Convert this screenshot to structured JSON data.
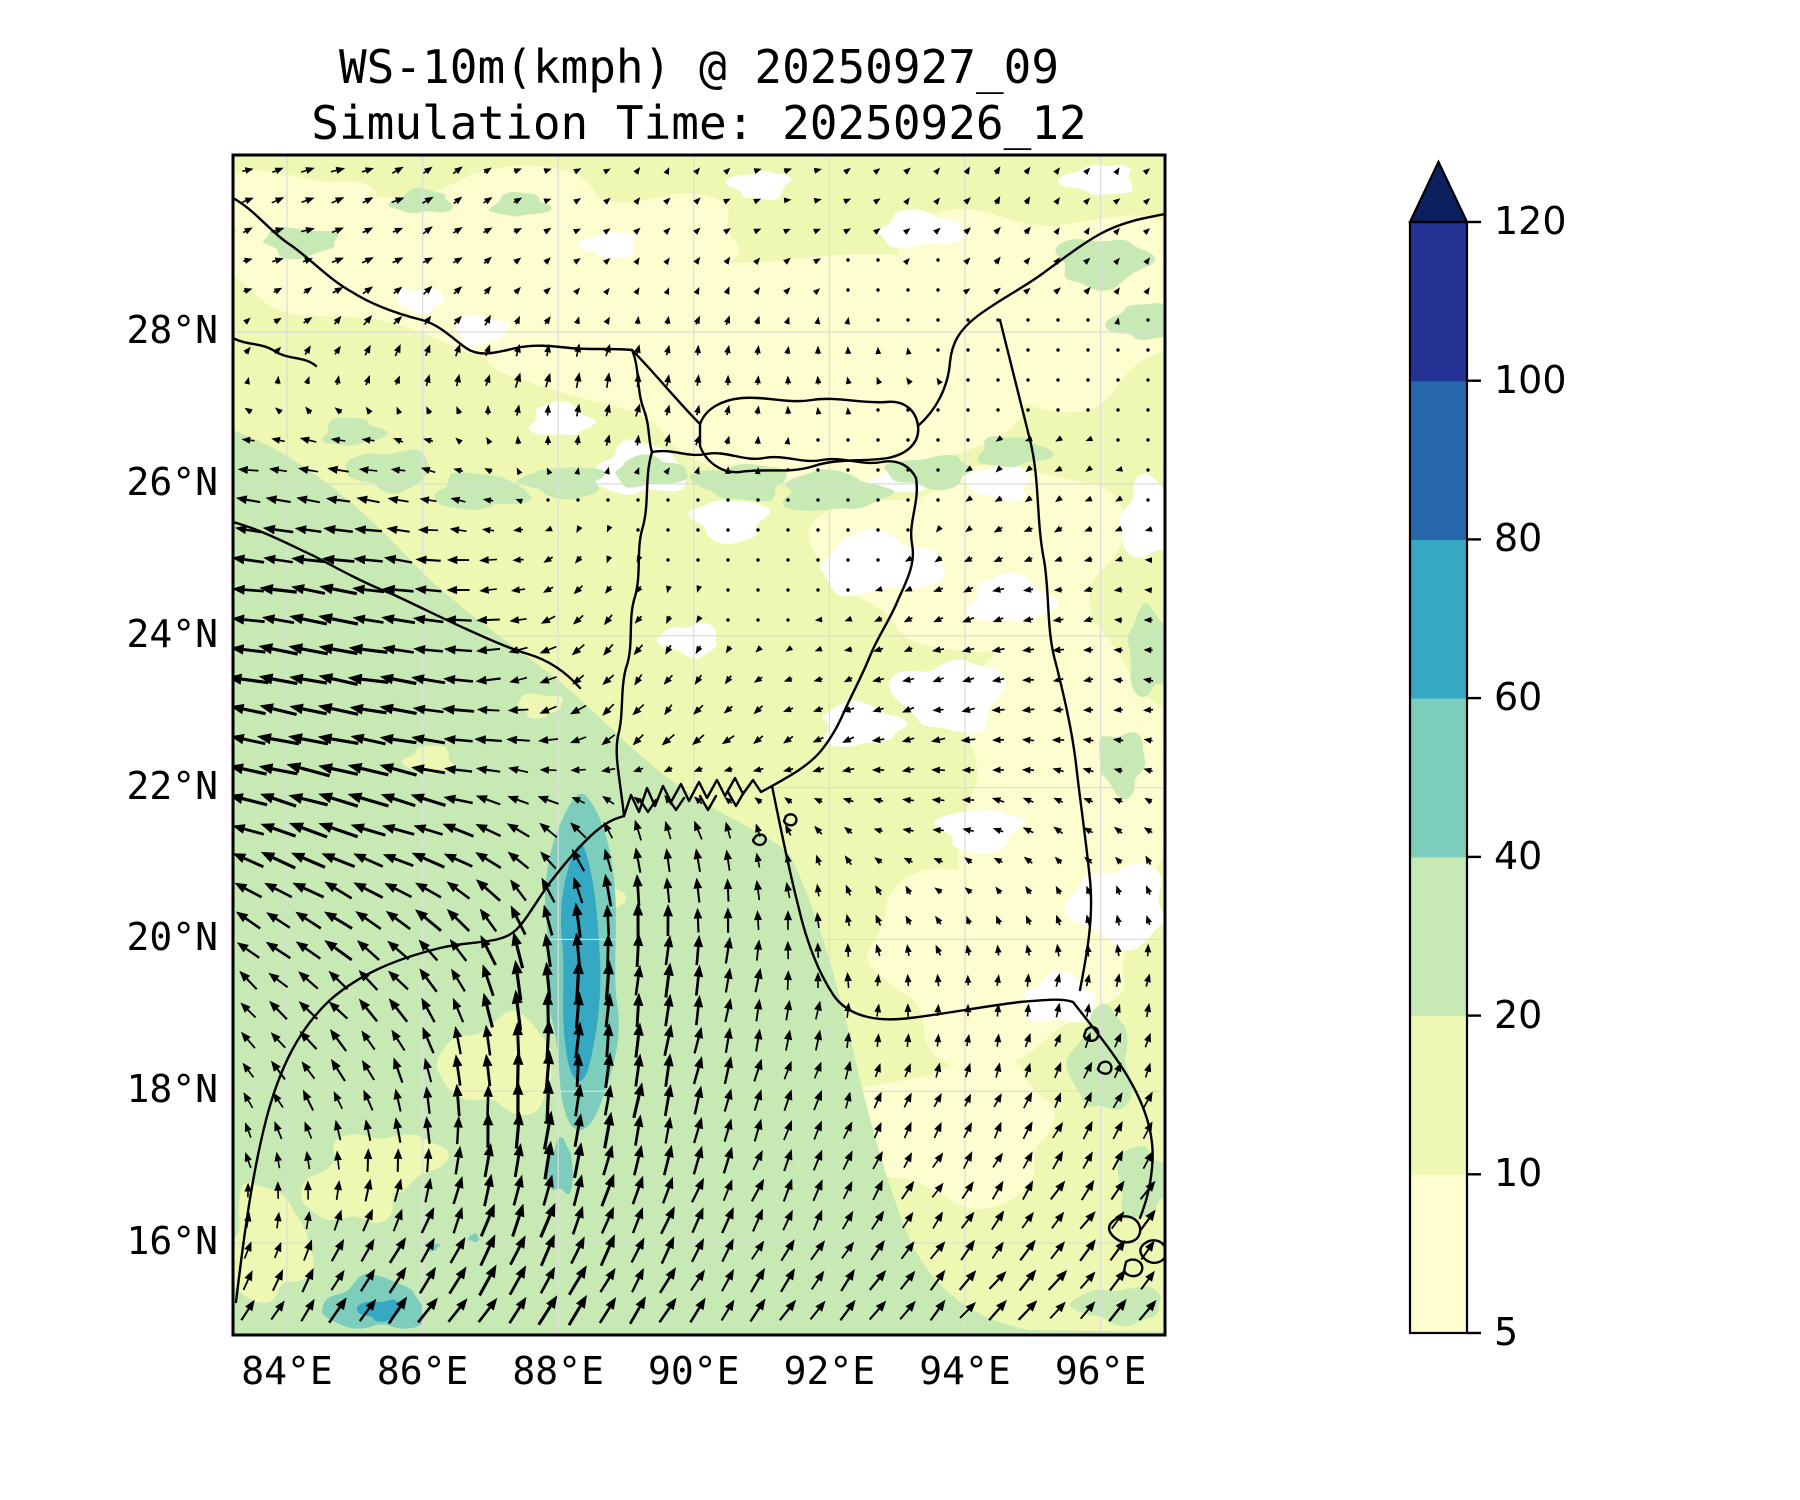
{
  "title": {
    "line1": "WS-10m(kmph) @ 20250927_09",
    "line2": "Simulation Time: 20250926_12"
  },
  "axes": {
    "x_ticks": [
      {
        "label": "84°E",
        "lon": 84
      },
      {
        "label": "86°E",
        "lon": 86
      },
      {
        "label": "88°E",
        "lon": 88
      },
      {
        "label": "90°E",
        "lon": 90
      },
      {
        "label": "92°E",
        "lon": 92
      },
      {
        "label": "94°E",
        "lon": 94
      },
      {
        "label": "96°E",
        "lon": 96
      }
    ],
    "y_ticks": [
      {
        "label": "16°N",
        "lat": 16
      },
      {
        "label": "18°N",
        "lat": 18
      },
      {
        "label": "20°N",
        "lat": 20
      },
      {
        "label": "22°N",
        "lat": 22
      },
      {
        "label": "24°N",
        "lat": 24
      },
      {
        "label": "26°N",
        "lat": 26
      },
      {
        "label": "28°N",
        "lat": 28
      }
    ],
    "grid_color": "#dcdcdc",
    "frame_color": "#000000"
  },
  "colorbar": {
    "tick_labels_top_to_bottom": [
      "120",
      "100",
      "80",
      "60",
      "40",
      "20",
      "10",
      "5"
    ],
    "levels": [
      5,
      10,
      20,
      40,
      60,
      80,
      100,
      120
    ],
    "extend": "max",
    "segment_colors_bottom_to_top": [
      "#fdfdd0",
      "#eef8b2",
      "#c7e9b4",
      "#7ccdbb",
      "#35a8c3",
      "#2767ac",
      "#253494"
    ],
    "over_color": "#0c1f5e",
    "outline_color": "#000000"
  },
  "chart_data": {
    "type": "quiver_contour_map",
    "title": "WS-10m(kmph) @ 20250927_09",
    "subtitle": "Simulation Time: 20250926_12",
    "variable": "WS-10m",
    "units": "kmph",
    "lon_range": [
      83.2,
      96.95
    ],
    "lat_range": [
      14.8,
      30.3
    ],
    "levels": [
      5,
      10,
      20,
      40,
      60,
      80,
      100,
      120
    ],
    "level_colors": {
      "lt5": "#ffffff",
      "b5_10": "#fdfdd0",
      "b10_20": "#eef8b2",
      "b20_40": "#c7e9b4",
      "b40_60": "#7ccdbb",
      "b60_80": "#35a8c3",
      "b80_100": "#2767ac",
      "b100_120": "#253494",
      "gt120": "#0c1f5e"
    },
    "arrow_color": "#000000",
    "map_features": [
      "coastline Bay of Bengal",
      "India east coast",
      "Ganges delta islands",
      "Bangladesh border",
      "Nepal border",
      "Bhutan border",
      "NE India / Myanmar borders",
      "Arakan coast with islands"
    ],
    "field_summary": [
      "Westward flow 15-22 kmph over land west of 88E between 22N and 26N (20-40 shading)",
      "Strong northward flow up to ~22 kmph over west-central Bay of Bengal (20-40 shading)",
      "40-60 and 60-80 kmph core in a narrow N-S band near 87.8-88.3E, 17.7-20.7N",
      "Secondary 40-60 patch near 85E, 15.2N",
      "Weak variable winds 0-10 kmph over the north and east (5-20 shading with <5 white patches)",
      "Northeastward flow 12-18 kmph in the far south"
    ],
    "wind_grid": {
      "lons": [
        83.5,
        84.5,
        85.5,
        86.5,
        87.5,
        88.5,
        89.5,
        90.5,
        91.5,
        92.5,
        93.5,
        94.5,
        95.5,
        96.5
      ],
      "lats": [
        29.5,
        28.5,
        27.5,
        26.5,
        25.5,
        24.5,
        23.5,
        22.5,
        21.5,
        20.5,
        19.5,
        18.5,
        17.5,
        16.5,
        15.2
      ],
      "u": [
        [
          6,
          7,
          6,
          5,
          4,
          3,
          2,
          3,
          4,
          3,
          2,
          3,
          2,
          2
        ],
        [
          4,
          5,
          5,
          4,
          3,
          2,
          1,
          2,
          2,
          1,
          2,
          3,
          3,
          2
        ],
        [
          2,
          3,
          3,
          2,
          2,
          1,
          1,
          1,
          0,
          -1,
          -2,
          -2,
          -2,
          -1
        ],
        [
          -8,
          -9,
          -7,
          -4,
          0,
          1,
          2,
          1,
          0,
          -1,
          -2,
          -3,
          -3,
          -2
        ],
        [
          -14,
          -15,
          -13,
          -9,
          -4,
          -1,
          1,
          0,
          0,
          -1,
          -2,
          -4,
          -4,
          -3
        ],
        [
          -18,
          -19,
          -17,
          -13,
          -8,
          -4,
          -2,
          -1,
          -2,
          -3,
          -5,
          -6,
          -5,
          -4
        ],
        [
          -20,
          -21,
          -19,
          -15,
          -10,
          -6,
          -4,
          -3,
          -4,
          -5,
          -6,
          -7,
          -6,
          -5
        ],
        [
          -20,
          -22,
          -20,
          -16,
          -11,
          -8,
          -6,
          -6,
          -6,
          -7,
          -7,
          -7,
          -6,
          -5
        ],
        [
          -18,
          -20,
          -19,
          -16,
          -12,
          -6,
          -3,
          -3,
          -3,
          -5,
          -6,
          -6,
          -5,
          -4
        ],
        [
          -14,
          -16,
          -15,
          -13,
          -8,
          -2,
          0,
          0,
          -1,
          -2,
          -3,
          -3,
          -2,
          -2
        ],
        [
          -10,
          -12,
          -11,
          -8,
          -3,
          1,
          2,
          2,
          1,
          0,
          -1,
          0,
          1,
          1
        ],
        [
          -7,
          -8,
          -6,
          -3,
          0,
          2,
          3,
          3,
          3,
          2,
          2,
          2,
          3,
          3
        ],
        [
          -4,
          -4,
          -2,
          0,
          2,
          3,
          4,
          4,
          4,
          4,
          4,
          4,
          5,
          5
        ],
        [
          0,
          2,
          4,
          5,
          6,
          6,
          6,
          6,
          5,
          5,
          6,
          6,
          7,
          7
        ],
        [
          6,
          8,
          10,
          11,
          10,
          9,
          8,
          8,
          8,
          8,
          8,
          9,
          9,
          9
        ]
      ],
      "v": [
        [
          2,
          2,
          3,
          3,
          2,
          2,
          3,
          2,
          1,
          2,
          3,
          4,
          3,
          2
        ],
        [
          2,
          3,
          4,
          4,
          3,
          2,
          3,
          4,
          3,
          2,
          1,
          2,
          3,
          3
        ],
        [
          4,
          5,
          6,
          7,
          8,
          8,
          7,
          6,
          5,
          4,
          3,
          2,
          1,
          2
        ],
        [
          1,
          2,
          1,
          2,
          4,
          6,
          6,
          5,
          3,
          1,
          -1,
          -2,
          -2,
          -1
        ],
        [
          2,
          2,
          2,
          1,
          -1,
          -3,
          -1,
          1,
          1,
          -1,
          -2,
          -3,
          -2,
          -1
        ],
        [
          2,
          3,
          2,
          1,
          -2,
          -5,
          -4,
          -2,
          0,
          -1,
          -2,
          -2,
          -1,
          0
        ],
        [
          3,
          4,
          3,
          1,
          -3,
          -6,
          -6,
          -4,
          -2,
          -2,
          -2,
          -1,
          -1,
          0
        ],
        [
          4,
          5,
          4,
          2,
          0,
          -4,
          -6,
          -5,
          -3,
          -2,
          -1,
          0,
          1,
          1
        ],
        [
          6,
          7,
          6,
          5,
          6,
          8,
          10,
          8,
          5,
          2,
          1,
          2,
          3,
          3
        ],
        [
          8,
          9,
          9,
          10,
          14,
          17,
          16,
          13,
          9,
          6,
          4,
          4,
          5,
          5
        ],
        [
          9,
          10,
          11,
          13,
          20,
          20,
          17,
          14,
          10,
          7,
          6,
          6,
          7,
          7
        ],
        [
          9,
          10,
          12,
          15,
          22,
          20,
          17,
          14,
          11,
          8,
          7,
          7,
          8,
          8
        ],
        [
          8,
          10,
          12,
          16,
          20,
          18,
          16,
          13,
          11,
          9,
          8,
          8,
          9,
          9
        ],
        [
          8,
          10,
          12,
          15,
          18,
          16,
          14,
          12,
          11,
          10,
          9,
          9,
          10,
          10
        ],
        [
          10,
          12,
          13,
          14,
          15,
          14,
          13,
          12,
          11,
          10,
          10,
          10,
          10,
          10
        ]
      ]
    }
  }
}
